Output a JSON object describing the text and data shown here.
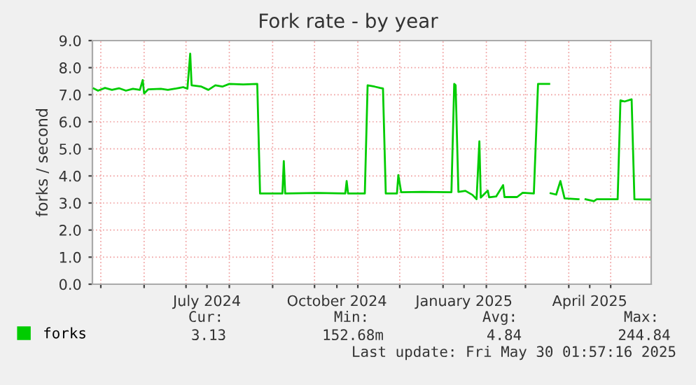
{
  "chart_data": {
    "type": "line",
    "title": "Fork rate - by year",
    "ylabel": "forks / second",
    "x": [
      "2024-04-26",
      "2024-04-29",
      "2024-05-04",
      "2024-05-09",
      "2024-05-14",
      "2024-05-19",
      "2024-05-24",
      "2024-05-29",
      "2024-05-31",
      "2024-06-01",
      "2024-06-04",
      "2024-06-13",
      "2024-06-18",
      "2024-06-24",
      "2024-06-29",
      "2024-07-02",
      "2024-07-04",
      "2024-07-05",
      "2024-07-12",
      "2024-07-17",
      "2024-07-22",
      "2024-07-27",
      "2024-08-01",
      "2024-08-11",
      "2024-08-21",
      "2024-08-23",
      "2024-09-08",
      "2024-09-09",
      "2024-09-10",
      "2024-10-03",
      "2024-10-23",
      "2024-10-24",
      "2024-10-25",
      "2024-11-06",
      "2024-11-08",
      "2024-11-13",
      "2024-11-17",
      "2024-11-19",
      "2024-11-21",
      "2024-11-29",
      "2024-11-30",
      "2024-12-02",
      "2024-12-17",
      "2025-01-07",
      "2025-01-09",
      "2025-01-10",
      "2025-01-12",
      "2025-01-17",
      "2025-01-22",
      "2025-01-25",
      "2025-01-27",
      "2025-01-28",
      "2025-02-02",
      "2025-02-03",
      "2025-02-08",
      "2025-02-13",
      "2025-02-14",
      "2025-02-23",
      "2025-02-27",
      "2025-03-07",
      "2025-03-10",
      "2025-03-18",
      "2025-03-18T12:00",
      "2025-03-19",
      "2025-03-23",
      "2025-03-26",
      "2025-03-29",
      "2025-04-08",
      "2025-04-10",
      "2025-04-13",
      "2025-04-19",
      "2025-04-21",
      "2025-05-06",
      "2025-05-08",
      "2025-05-11",
      "2025-05-16",
      "2025-05-18",
      "2025-05-29"
    ],
    "series": [
      {
        "name": "forks",
        "color": "#00cc00",
        "values": [
          7.23,
          7.15,
          7.25,
          7.18,
          7.24,
          7.15,
          7.22,
          7.18,
          7.54,
          7.05,
          7.2,
          7.22,
          7.18,
          7.23,
          7.28,
          7.22,
          8.52,
          7.35,
          7.3,
          7.18,
          7.35,
          7.3,
          7.4,
          7.38,
          7.4,
          3.35,
          3.35,
          4.55,
          3.35,
          3.37,
          3.35,
          3.81,
          3.35,
          3.35,
          7.35,
          7.3,
          7.25,
          7.23,
          3.35,
          3.35,
          4.03,
          3.4,
          3.41,
          3.4,
          7.4,
          7.35,
          3.41,
          3.45,
          3.3,
          3.14,
          5.28,
          3.2,
          3.46,
          3.21,
          3.24,
          3.66,
          3.22,
          3.22,
          3.38,
          3.35,
          7.4,
          7.4,
          null,
          3.36,
          3.31,
          3.81,
          3.17,
          3.14,
          null,
          3.14,
          3.07,
          3.14,
          3.14,
          6.79,
          6.75,
          6.83,
          3.14,
          3.13
        ]
      }
    ],
    "xlim": [
      "2024-04-25",
      "2025-05-30"
    ],
    "xticks": [
      {
        "value": "2024-05-01",
        "label": null
      },
      {
        "value": "2024-06-01",
        "label": null
      },
      {
        "value": "2024-07-01",
        "label": null
      },
      {
        "value": "2024-07-16",
        "label": "July 2024"
      },
      {
        "value": "2024-08-01",
        "label": null
      },
      {
        "value": "2024-09-01",
        "label": null
      },
      {
        "value": "2024-10-01",
        "label": null
      },
      {
        "value": "2024-10-17",
        "label": "October 2024"
      },
      {
        "value": "2024-11-01",
        "label": null
      },
      {
        "value": "2024-12-01",
        "label": null
      },
      {
        "value": "2025-01-01",
        "label": null
      },
      {
        "value": "2025-01-16",
        "label": "January 2025"
      },
      {
        "value": "2025-02-01",
        "label": null
      },
      {
        "value": "2025-03-01",
        "label": null
      },
      {
        "value": "2025-04-01",
        "label": null
      },
      {
        "value": "2025-04-16",
        "label": "April 2025"
      },
      {
        "value": "2025-05-01",
        "label": null
      }
    ],
    "ylim": [
      0,
      9
    ],
    "yticks": [
      {
        "value": 0,
        "label": "0.0"
      },
      {
        "value": 1,
        "label": "1.0"
      },
      {
        "value": 2,
        "label": "2.0"
      },
      {
        "value": 3,
        "label": "3.0"
      },
      {
        "value": 4,
        "label": "4.0"
      },
      {
        "value": 5,
        "label": "5.0"
      },
      {
        "value": 6,
        "label": "6.0"
      },
      {
        "value": 7,
        "label": "7.0"
      },
      {
        "value": 8,
        "label": "8.0"
      },
      {
        "value": 9,
        "label": "9.0"
      }
    ],
    "grid": true,
    "legend": "bottom left",
    "line_style": "solid",
    "marker": "none",
    "annotations": [
      "Cur:",
      "Min:",
      "Avg:",
      "Max:",
      "3.13",
      "152.68m",
      "4.84",
      "244.84",
      "Last update: Fri May 30 01:57:16 2025"
    ]
  }
}
